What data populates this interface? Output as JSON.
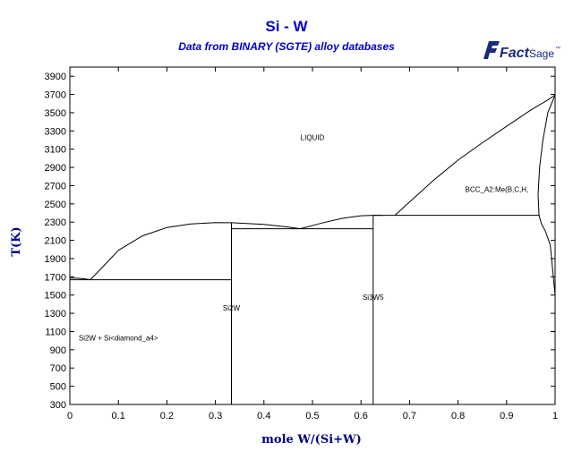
{
  "title": "Si - W",
  "subtitle": "Data from BINARY (SGTE) alloy databases",
  "logo": {
    "part1": "Fact",
    "part2": "Sage",
    "mark": "™",
    "color": "#1a2a7a"
  },
  "chart_data": {
    "type": "line",
    "title": "Si - W",
    "subtitle": "Data from BINARY (SGTE) alloy databases",
    "xlabel": "mole W/(Si+W)",
    "ylabel": "T(K)",
    "xlim": [
      0,
      1
    ],
    "ylim": [
      300,
      4000
    ],
    "xticks": [
      0,
      0.1,
      0.2,
      0.3,
      0.4,
      0.5,
      0.6,
      0.7,
      0.8,
      0.9,
      1
    ],
    "yticks": [
      300,
      500,
      700,
      900,
      1100,
      1300,
      1500,
      1700,
      1900,
      2100,
      2300,
      2500,
      2700,
      2900,
      3100,
      3300,
      3500,
      3700,
      3900
    ],
    "grid": false,
    "legend": "none",
    "line_color": "#000000",
    "series": [
      {
        "x": [
          0,
          0.015,
          0.03,
          0.042
        ],
        "y": [
          1687,
          1685,
          1678,
          1668
        ]
      },
      {
        "x": [
          0.042,
          0.07,
          0.1,
          0.15,
          0.2,
          0.25,
          0.3,
          0.333
        ],
        "y": [
          1668,
          1820,
          1990,
          2150,
          2240,
          2280,
          2295,
          2293
        ]
      },
      {
        "x": [
          0.333,
          0.4,
          0.45,
          0.475
        ],
        "y": [
          2293,
          2275,
          2245,
          2228
        ]
      },
      {
        "x": [
          0.475,
          0.52,
          0.56,
          0.6,
          0.625,
          0.645
        ],
        "y": [
          2228,
          2290,
          2340,
          2370,
          2375,
          2375
        ]
      },
      {
        "x": [
          0.67,
          0.7,
          0.75,
          0.8,
          0.85,
          0.9,
          0.95,
          0.985,
          1.0
        ],
        "y": [
          2375,
          2520,
          2760,
          2980,
          3170,
          3350,
          3530,
          3640,
          3695
        ]
      },
      {
        "x": [
          1.0,
          0.985,
          0.975,
          0.968,
          0.965,
          0.967,
          0.972,
          0.98,
          0.99,
          1.0
        ],
        "y": [
          3695,
          3500,
          3200,
          2900,
          2600,
          2370,
          2280,
          2200,
          2050,
          1500
        ]
      },
      {
        "x": [
          0.042,
          0.333
        ],
        "y": [
          1668,
          1668
        ]
      },
      {
        "x": [
          0.333,
          0.333
        ],
        "y": [
          300,
          2293
        ]
      },
      {
        "x": [
          0.333,
          0.625
        ],
        "y": [
          2228,
          2228
        ]
      },
      {
        "x": [
          0.625,
          0.625
        ],
        "y": [
          300,
          2375
        ]
      },
      {
        "x": [
          0.625,
          0.968
        ],
        "y": [
          2375,
          2375
        ]
      },
      {
        "x": [
          0,
          0.042
        ],
        "y": [
          1668,
          1668
        ]
      }
    ],
    "annotations": [
      {
        "text": "LIQUID",
        "x": 0.5,
        "y": 3200
      },
      {
        "text": "BCC_A2:Me(B,C,H,",
        "x": 0.88,
        "y": 2630
      },
      {
        "text": "Si2W",
        "x": 0.333,
        "y": 1330
      },
      {
        "text": "Si3W5",
        "x": 0.625,
        "y": 1450
      },
      {
        "text": "Si2W + Si<diamond_a4>",
        "x": 0.1,
        "y": 1000
      }
    ]
  }
}
